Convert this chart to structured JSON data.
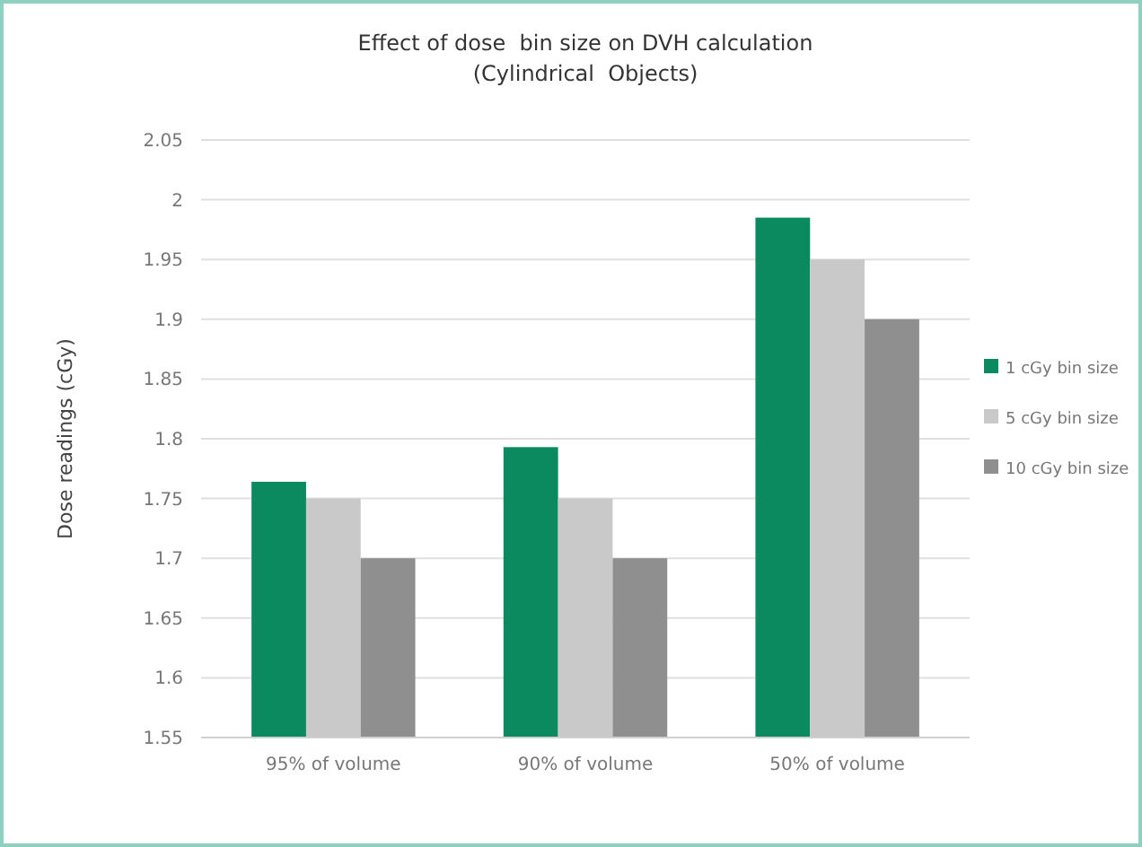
{
  "chart_data": {
    "type": "bar",
    "title": "Effect of dose  bin size on DVH calculation\n(Cylindrical  Objects)",
    "ylabel": "Dose readings (cGy)",
    "categories": [
      "95% of volume",
      "90% of volume",
      "50% of volume"
    ],
    "series": [
      {
        "name": "1 cGy bin size",
        "color": "#0b8a5f",
        "values": [
          1.764,
          1.793,
          1.985
        ]
      },
      {
        "name": "5 cGy bin size",
        "color": "#c9c9c9",
        "values": [
          1.75,
          1.75,
          1.95
        ]
      },
      {
        "name": "10 cGy bin size",
        "color": "#8f8f8f",
        "values": [
          1.7,
          1.7,
          1.9
        ]
      }
    ],
    "ylim": [
      1.55,
      2.05
    ],
    "yticks": [
      1.55,
      1.6,
      1.65,
      1.7,
      1.75,
      1.8,
      1.85,
      1.9,
      1.95,
      2,
      2.05
    ],
    "grid": "y",
    "legend": "right"
  }
}
